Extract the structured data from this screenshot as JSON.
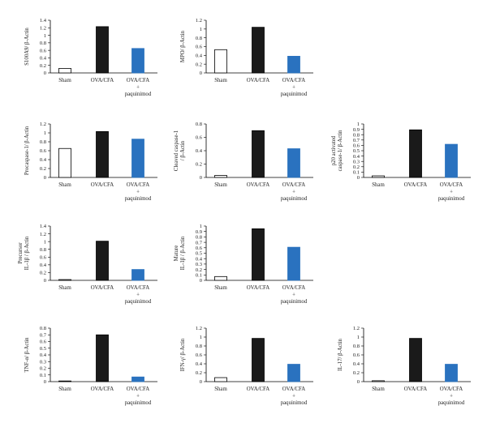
{
  "figure": {
    "colors": {
      "Sham": {
        "fill": "#ffffff",
        "stroke": "#000000"
      },
      "OVA/CFA": {
        "fill": "#1a1a1a",
        "stroke": "#000000"
      },
      "OVA/CFA + paquinimod": {
        "fill": "#2a72bf",
        "stroke": "#2a72bf"
      }
    }
  },
  "chart_data": [
    {
      "type": "bar",
      "ylabel": "S100A9/ β-Actin",
      "categories": [
        "Sham",
        "OVA/CFA",
        "OVA/CFA + paquinimod"
      ],
      "values": [
        0.12,
        1.23,
        0.65
      ],
      "ylim": [
        0,
        1.4
      ],
      "yticks": [
        "0",
        "0.2",
        "0.4",
        "0.6",
        "0.8",
        "1",
        "1.2",
        "1.4"
      ]
    },
    {
      "type": "bar",
      "ylabel": "MPO/ β-Actin",
      "categories": [
        "Sham",
        "OVA/CFA",
        "OVA/CFA + paquinimod"
      ],
      "values": [
        0.53,
        1.04,
        0.38
      ],
      "ylim": [
        0,
        1.2
      ],
      "yticks": [
        "0",
        "0.2",
        "0.4",
        "0.6",
        "0.8",
        "1",
        "1.2"
      ]
    },
    {
      "type": "bar",
      "ylabel": "Procaspase-1/ β-Actin",
      "categories": [
        "Sham",
        "OVA/CFA",
        "OVA/CFA + paquinimod"
      ],
      "values": [
        0.65,
        1.03,
        0.86
      ],
      "ylim": [
        0,
        1.2
      ],
      "yticks": [
        "0",
        "0.2",
        "0.4",
        "0.6",
        "0.8",
        "1",
        "1.2"
      ]
    },
    {
      "type": "bar",
      "ylabel": [
        "Cleaved caspase-1",
        "/ β-Actin"
      ],
      "categories": [
        "Sham",
        "OVA/CFA",
        "OVA/CFA + paquinimod"
      ],
      "values": [
        0.03,
        0.7,
        0.43
      ],
      "ylim": [
        0,
        0.8
      ],
      "yticks": [
        "0",
        "0.2",
        "0.4",
        "0.6",
        "0.8"
      ]
    },
    {
      "type": "bar",
      "ylabel": [
        "p20 activated",
        "caspase-1/ β-Actin"
      ],
      "categories": [
        "Sham",
        "OVA/CFA",
        "OVA/CFA + paquinimod"
      ],
      "values": [
        0.03,
        0.89,
        0.62
      ],
      "ylim": [
        0,
        1
      ],
      "yticks": [
        "0",
        "0.1",
        "0.2",
        "0.3",
        "0.4",
        "0.5",
        "0.6",
        "0.7",
        "0.8",
        "0.9",
        "1"
      ]
    },
    {
      "type": "bar",
      "ylabel": [
        "Precursor",
        "IL-1β / β-Actin"
      ],
      "categories": [
        "Sham",
        "OVA/CFA",
        "OVA/CFA + paquinimod"
      ],
      "values": [
        0.02,
        1.01,
        0.28
      ],
      "ylim": [
        0,
        1.4
      ],
      "yticks": [
        "0",
        "0.2",
        "0.4",
        "0.6",
        "0.8",
        "1",
        "1.2",
        "1.4"
      ]
    },
    {
      "type": "bar",
      "ylabel": [
        "Mature",
        "IL-1β / β-Actin"
      ],
      "categories": [
        "Sham",
        "OVA/CFA",
        "OVA/CFA + paquinimod"
      ],
      "values": [
        0.07,
        0.95,
        0.61
      ],
      "ylim": [
        0,
        1
      ],
      "yticks": [
        "0",
        "0.1",
        "0.2",
        "0.3",
        "0.4",
        "0.5",
        "0.6",
        "0.7",
        "0.8",
        "0.9",
        "1"
      ]
    },
    {
      "type": "bar",
      "ylabel": "TNF-α/ β-Actin",
      "categories": [
        "Sham",
        "OVA/CFA",
        "OVA/CFA + paquinimod"
      ],
      "values": [
        0.01,
        0.7,
        0.07
      ],
      "ylim": [
        0,
        0.8
      ],
      "yticks": [
        "0",
        "0.1",
        "0.2",
        "0.3",
        "0.4",
        "0.5",
        "0.6",
        "0.7",
        "0.8"
      ]
    },
    {
      "type": "bar",
      "ylabel": "IFN-γ/ β-Actin",
      "categories": [
        "Sham",
        "OVA/CFA",
        "OVA/CFA + paquinimod"
      ],
      "values": [
        0.09,
        0.97,
        0.39
      ],
      "ylim": [
        0,
        1.2
      ],
      "yticks": [
        "0",
        "0.2",
        "0.4",
        "0.6",
        "0.8",
        "1",
        "1.2"
      ]
    },
    {
      "type": "bar",
      "ylabel": "IL-17/ β-Actin",
      "categories": [
        "Sham",
        "OVA/CFA",
        "OVA/CFA + paquinimod"
      ],
      "values": [
        0.02,
        0.97,
        0.39
      ],
      "ylim": [
        0,
        1.2
      ],
      "yticks": [
        "0",
        "0.2",
        "0.4",
        "0.6",
        "0.8",
        "1",
        "1.2"
      ]
    }
  ]
}
